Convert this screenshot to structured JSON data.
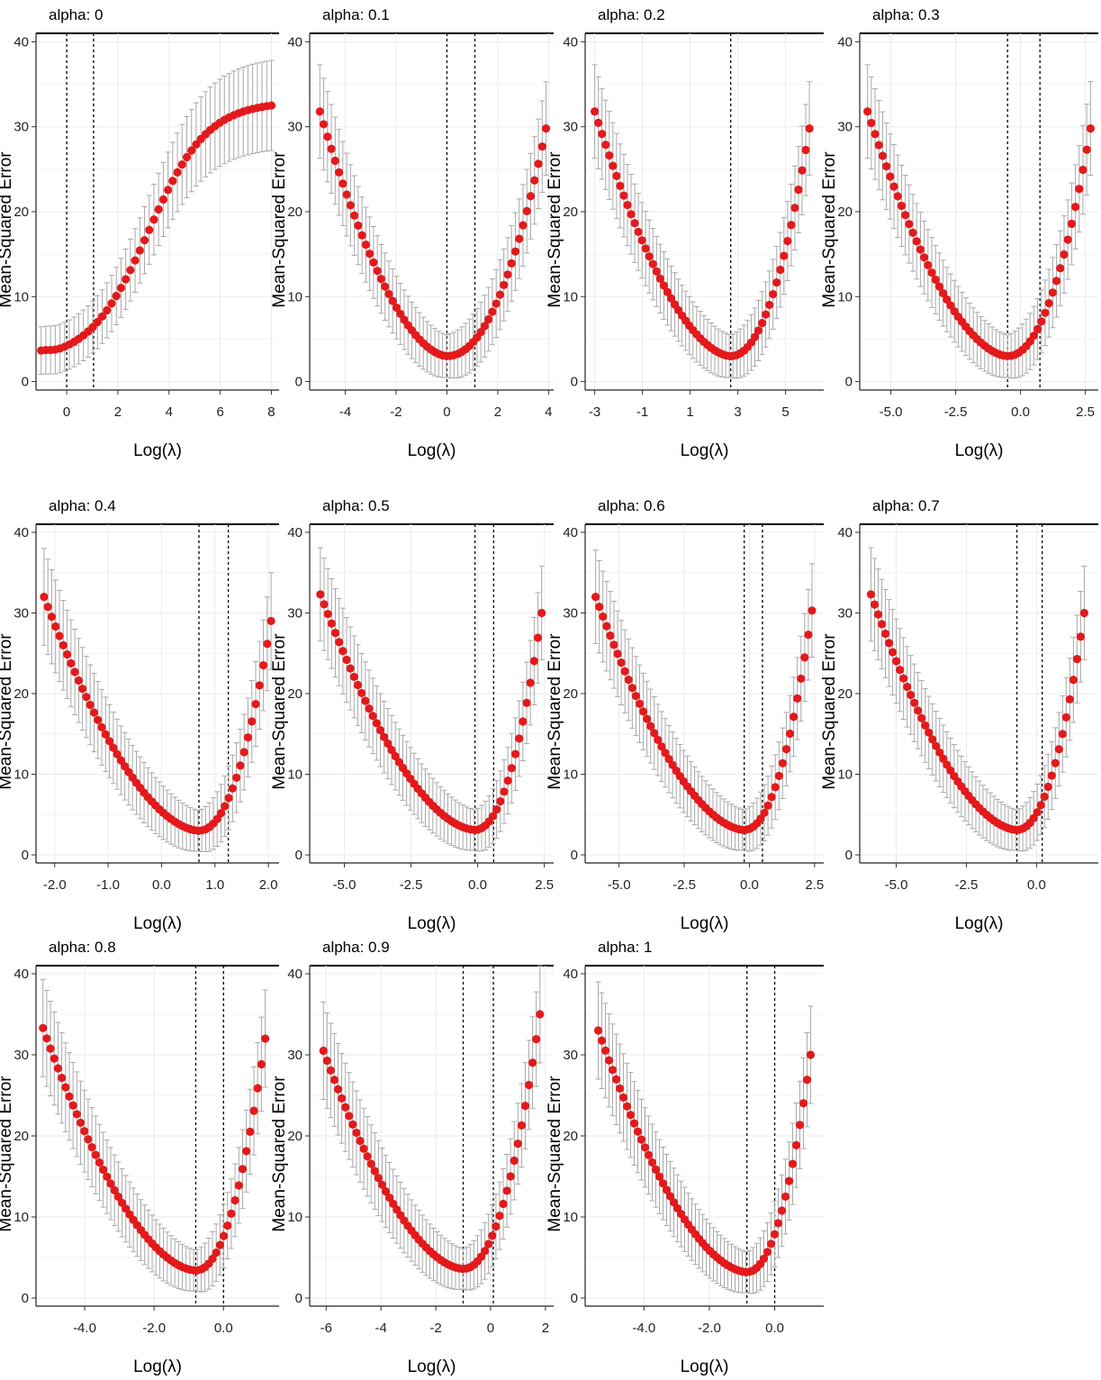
{
  "figure": {
    "background": "#ffffff",
    "point_color": "#e3191b",
    "errorbar_color": "#a8a8a8",
    "grid_color": "#ebebeb",
    "vline_color": "#000000"
  },
  "chart_data": [
    {
      "type": "line",
      "title": "alpha: 0",
      "xlabel": "Log(λ)",
      "ylabel": "Mean-Squared Error",
      "xlim": [
        -1.2,
        8.3
      ],
      "ylim": [
        -1,
        41
      ],
      "xticks": [
        0,
        2,
        4,
        6,
        8
      ],
      "xtick_labels": [
        "0",
        "2",
        "4",
        "6",
        "8"
      ],
      "yticks": [
        0,
        10,
        20,
        30,
        40
      ],
      "ytick_labels": [
        "0",
        "10",
        "20",
        "30",
        "40"
      ],
      "vlines": [
        0,
        1.05
      ],
      "x_range": [
        -1,
        8
      ],
      "n_points": 50,
      "curve": "sigmoid",
      "y_start": 3.7,
      "y_end": 32.5,
      "y_min": 3.2,
      "x_min": 0,
      "err_min": 2.8,
      "err_max": 5.3
    },
    {
      "type": "line",
      "title": "alpha: 0.1",
      "xlabel": "Log(λ)",
      "ylabel": "Mean-Squared Error",
      "xlim": [
        -5.4,
        4.2
      ],
      "ylim": [
        -1,
        41
      ],
      "xticks": [
        -4,
        -2,
        0,
        2,
        4
      ],
      "xtick_labels": [
        "-4",
        "-2",
        "0",
        "2",
        "4"
      ],
      "yticks": [
        0,
        10,
        20,
        30,
        40
      ],
      "ytick_labels": [
        "0",
        "10",
        "20",
        "30",
        "40"
      ],
      "vlines": [
        0,
        1.1
      ],
      "x_range": [
        -5,
        3.9
      ],
      "n_points": 60,
      "curve": "u",
      "y_start": 31.8,
      "y_end": 29.8,
      "y_min": 3.0,
      "x_min": 0,
      "err_min": 2.5,
      "err_max": 5.5
    },
    {
      "type": "line",
      "title": "alpha: 0.2",
      "xlabel": "Log(λ)",
      "ylabel": "Mean-Squared Error",
      "xlim": [
        -3.4,
        6.6
      ],
      "ylim": [
        -1,
        41
      ],
      "xticks": [
        -3,
        -1,
        1,
        3,
        5
      ],
      "xtick_labels": [
        "-3",
        "-1",
        "1",
        "3",
        "5"
      ],
      "yticks": [
        0,
        10,
        20,
        30,
        40
      ],
      "ytick_labels": [
        "0",
        "10",
        "20",
        "30",
        "40"
      ],
      "vlines": [
        2.7
      ],
      "x_range": [
        -3,
        6
      ],
      "n_points": 60,
      "curve": "u",
      "y_start": 31.8,
      "y_end": 29.8,
      "y_min": 3.0,
      "x_min": 2.7,
      "err_min": 2.5,
      "err_max": 5.5
    },
    {
      "type": "line",
      "title": "alpha: 0.3",
      "xlabel": "Log(λ)",
      "ylabel": "Mean-Squared Error",
      "xlim": [
        -6.2,
        3.0
      ],
      "ylim": [
        -1,
        41
      ],
      "xticks": [
        -5,
        -2.5,
        0,
        2.5
      ],
      "xtick_labels": [
        "-5.0",
        "-2.5",
        "0.0",
        "2.5"
      ],
      "yticks": [
        0,
        10,
        20,
        30,
        40
      ],
      "ytick_labels": [
        "0",
        "10",
        "20",
        "30",
        "40"
      ],
      "vlines": [
        -0.5,
        0.75
      ],
      "x_range": [
        -5.9,
        2.7
      ],
      "n_points": 60,
      "curve": "u",
      "y_start": 31.8,
      "y_end": 29.8,
      "y_min": 3.0,
      "x_min": -0.5,
      "err_min": 2.5,
      "err_max": 5.5
    },
    {
      "type": "line",
      "title": "alpha: 0.4",
      "xlabel": "Log(λ)",
      "ylabel": "Mean-Squared Error",
      "xlim": [
        -2.35,
        2.2
      ],
      "ylim": [
        -1,
        41
      ],
      "xticks": [
        -2,
        -1,
        0,
        1,
        2
      ],
      "xtick_labels": [
        "-2.0",
        "-1.0",
        "0.0",
        "1.0",
        "2.0"
      ],
      "yticks": [
        0,
        10,
        20,
        30,
        40
      ],
      "ytick_labels": [
        "0",
        "10",
        "20",
        "30",
        "40"
      ],
      "vlines": [
        0.7,
        1.25
      ],
      "x_range": [
        -2.2,
        2.05
      ],
      "n_points": 60,
      "curve": "u",
      "y_start": 32.0,
      "y_end": 29.0,
      "y_min": 3.0,
      "x_min": 0.7,
      "err_min": 2.5,
      "err_max": 6.0
    },
    {
      "type": "line",
      "title": "alpha: 0.5",
      "xlabel": "Log(λ)",
      "ylabel": "Mean-Squared Error",
      "xlim": [
        -6.3,
        2.85
      ],
      "ylim": [
        -1,
        41
      ],
      "xticks": [
        -5,
        -2.5,
        0,
        2.5
      ],
      "xtick_labels": [
        "-5.0",
        "-2.5",
        "0.0",
        "2.5"
      ],
      "yticks": [
        0,
        10,
        20,
        30,
        40
      ],
      "ytick_labels": [
        "0",
        "10",
        "20",
        "30",
        "40"
      ],
      "vlines": [
        -0.1,
        0.6
      ],
      "x_range": [
        -5.9,
        2.4
      ],
      "n_points": 60,
      "curve": "u",
      "y_start": 32.3,
      "y_end": 30.0,
      "y_min": 3.1,
      "x_min": -0.1,
      "err_min": 2.5,
      "err_max": 5.8
    },
    {
      "type": "line",
      "title": "alpha: 0.6",
      "xlabel": "Log(λ)",
      "ylabel": "Mean-Squared Error",
      "xlim": [
        -6.3,
        2.85
      ],
      "ylim": [
        -1,
        41
      ],
      "xticks": [
        -5,
        -2.5,
        0,
        2.5
      ],
      "xtick_labels": [
        "-5.0",
        "-2.5",
        "0.0",
        "2.5"
      ],
      "yticks": [
        0,
        10,
        20,
        30,
        40
      ],
      "ytick_labels": [
        "0",
        "10",
        "20",
        "30",
        "40"
      ],
      "vlines": [
        -0.2,
        0.5
      ],
      "x_range": [
        -5.9,
        2.4
      ],
      "n_points": 60,
      "curve": "u",
      "y_start": 32.0,
      "y_end": 30.3,
      "y_min": 3.1,
      "x_min": -0.2,
      "err_min": 2.5,
      "err_max": 5.8
    },
    {
      "type": "line",
      "title": "alpha: 0.7",
      "xlabel": "Log(λ)",
      "ylabel": "Mean-Squared Error",
      "xlim": [
        -6.3,
        2.2
      ],
      "ylim": [
        -1,
        41
      ],
      "xticks": [
        -5,
        -2.5,
        0
      ],
      "xtick_labels": [
        "-5.0",
        "-2.5",
        "0.0"
      ],
      "yticks": [
        0,
        10,
        20,
        30,
        40
      ],
      "ytick_labels": [
        "0",
        "10",
        "20",
        "30",
        "40"
      ],
      "vlines": [
        -0.7,
        0.2
      ],
      "x_range": [
        -5.9,
        1.7
      ],
      "n_points": 60,
      "curve": "u",
      "y_start": 32.3,
      "y_end": 30.0,
      "y_min": 3.1,
      "x_min": -0.7,
      "err_min": 2.5,
      "err_max": 5.8
    },
    {
      "type": "line",
      "title": "alpha: 0.8",
      "xlabel": "Log(λ)",
      "ylabel": "Mean-Squared Error",
      "xlim": [
        -5.4,
        1.6
      ],
      "ylim": [
        -1,
        41
      ],
      "xticks": [
        -4,
        -2,
        0
      ],
      "xtick_labels": [
        "-4.0",
        "-2.0",
        "0.0"
      ],
      "yticks": [
        0,
        10,
        20,
        30,
        40
      ],
      "ytick_labels": [
        "0",
        "10",
        "20",
        "30",
        "40"
      ],
      "vlines": [
        -0.8,
        0.0
      ],
      "x_range": [
        -5.2,
        1.2
      ],
      "n_points": 60,
      "curve": "u",
      "y_start": 33.3,
      "y_end": 32.0,
      "y_min": 3.4,
      "x_min": -0.8,
      "err_min": 2.5,
      "err_max": 6.0
    },
    {
      "type": "line",
      "title": "alpha: 0.9",
      "xlabel": "Log(λ)",
      "ylabel": "Mean-Squared Error",
      "xlim": [
        -6.6,
        2.3
      ],
      "ylim": [
        -1,
        41
      ],
      "xticks": [
        -6,
        -4,
        -2,
        0,
        2
      ],
      "xtick_labels": [
        "-6",
        "-4",
        "-2",
        "0",
        "2"
      ],
      "yticks": [
        0,
        10,
        20,
        30,
        40
      ],
      "ytick_labels": [
        "0",
        "10",
        "20",
        "30",
        "40"
      ],
      "vlines": [
        -1.0,
        0.1
      ],
      "x_range": [
        -6.1,
        1.8
      ],
      "n_points": 60,
      "curve": "u",
      "y_start": 30.5,
      "y_end": 35.0,
      "y_min": 3.6,
      "x_min": -1.0,
      "err_min": 2.5,
      "err_max": 6.0
    },
    {
      "type": "line",
      "title": "alpha: 1",
      "xlabel": "Log(λ)",
      "ylabel": "Mean-Squared Error",
      "xlim": [
        -5.8,
        1.5
      ],
      "ylim": [
        -1,
        41
      ],
      "xticks": [
        -4,
        -2,
        0
      ],
      "xtick_labels": [
        "-4.0",
        "-2.0",
        "0.0"
      ],
      "yticks": [
        0,
        10,
        20,
        30,
        40
      ],
      "ytick_labels": [
        "0",
        "10",
        "20",
        "30",
        "40"
      ],
      "vlines": [
        -0.85,
        0.0
      ],
      "x_range": [
        -5.4,
        1.1
      ],
      "n_points": 60,
      "curve": "u",
      "y_start": 33.0,
      "y_end": 30.0,
      "y_min": 3.2,
      "x_min": -0.85,
      "err_min": 2.5,
      "err_max": 6.0
    }
  ]
}
